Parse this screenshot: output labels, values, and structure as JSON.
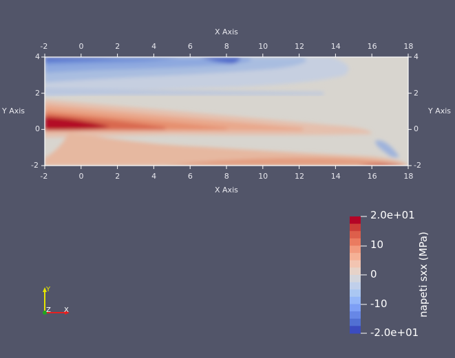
{
  "viewport": {
    "x_axis_title_top": "X Axis",
    "x_axis_title_bottom": "X Axis",
    "y_axis_title_left": "Y Axis",
    "y_axis_title_right": "Y Axis",
    "x_ticks": [
      "-2",
      "0",
      "2",
      "4",
      "6",
      "8",
      "10",
      "12",
      "14",
      "16",
      "18"
    ],
    "y_ticks": [
      "4",
      "2",
      "0",
      "-2"
    ]
  },
  "scalar_bar": {
    "title": "napeti sxx (MPa)",
    "labels": [
      "2.0e+01",
      "10",
      "0",
      "-10",
      "-2.0e+01"
    ],
    "range": [
      -20,
      20
    ],
    "colors_high_to_low": [
      "#b40426",
      "#cc3d37",
      "#dd5f4b",
      "#ea7b60",
      "#f29a7e",
      "#f5b196",
      "#f2c4b1",
      "#e6d2c8",
      "#d3d5dc",
      "#c0cfea",
      "#aac7f2",
      "#94b6f8",
      "#7d9ff5",
      "#6787e6",
      "#5170d3",
      "#3b4cc0"
    ]
  },
  "orientation_triad": {
    "y_label": "Y",
    "z_label": "Z",
    "x_label": "X",
    "y_color": "#e6e600",
    "x_color": "#e62020",
    "z_color": "#1fa51f"
  },
  "field_colors": {
    "deep_red": "#b30f25",
    "red": "#d65a48",
    "light_red": "#e6a085",
    "pale_red": "#e8b9a2",
    "neutral": "#d9d6d0",
    "light_blue": "#b7c7e2",
    "mid_blue": "#88a6dc",
    "blue": "#5a7ac9",
    "dark_blue": "#3b4cc0"
  }
}
